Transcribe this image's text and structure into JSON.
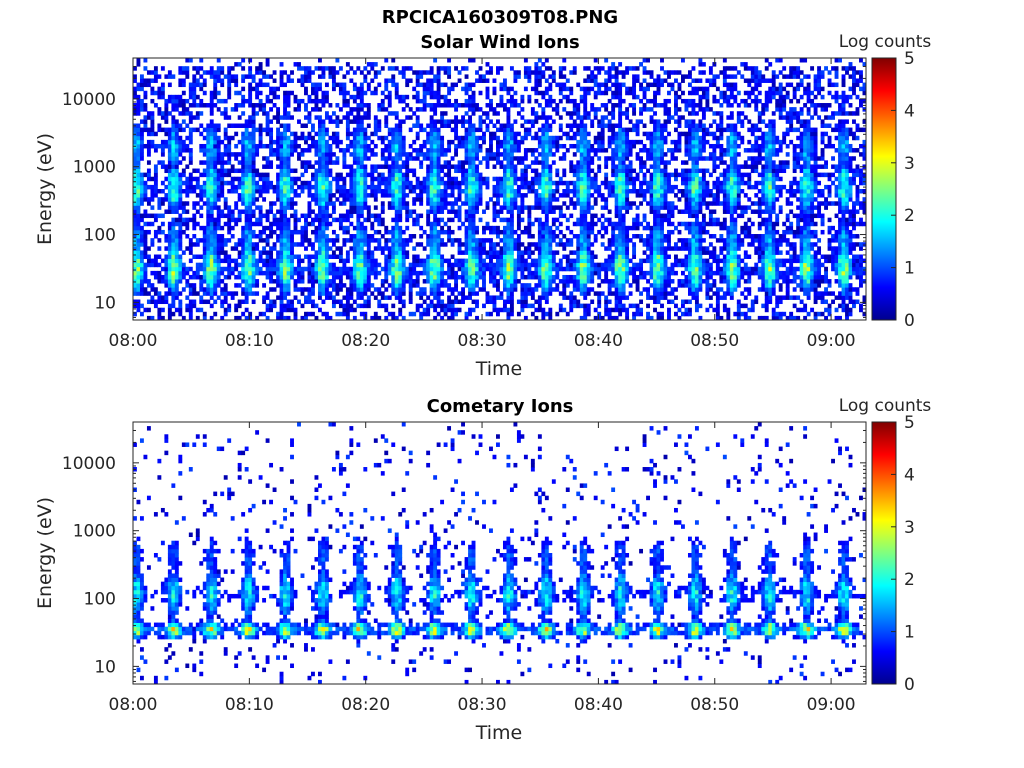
{
  "figure": {
    "title": "RPCICA160309T08.PNG"
  },
  "chart_data": [
    {
      "type": "heatmap",
      "title": "Solar Wind Ions",
      "xlabel": "Time",
      "ylabel": "Energy (eV)",
      "x_tick_labels": [
        "08:00",
        "08:10",
        "08:20",
        "08:30",
        "08:40",
        "08:50",
        "09:00"
      ],
      "x_range_minutes": [
        0,
        63
      ],
      "y_scale": "log",
      "y_range": [
        5.5,
        40000
      ],
      "y_ticks": [
        10,
        100,
        1000,
        10000
      ],
      "y_tick_labels": [
        "10",
        "100",
        "1000",
        "10000"
      ],
      "colorbar": {
        "label": "Log counts",
        "range": [
          0,
          5
        ],
        "ticks": [
          "0",
          "1",
          "2",
          "3",
          "4",
          "5"
        ],
        "colormap": "jet"
      },
      "pattern": "periodic ion bursts every ~3.2 min; core ~30 eV at log counts ~2-2.5; secondary band ~300-600 eV log counts ~2-2.5; sparse counts extending up to ~40 keV",
      "period_minutes": 3.2,
      "first_burst_minutes": 0.3,
      "bands": [
        {
          "center_eV": 32,
          "peak_log_counts": 2.4
        },
        {
          "center_eV": 80,
          "peak_log_counts": 1.4
        },
        {
          "center_eV": 500,
          "peak_log_counts": 2.1
        },
        {
          "center_eV": 2000,
          "peak_log_counts": 1.5
        },
        {
          "center_eV": 10000,
          "peak_log_counts": 0.6
        }
      ],
      "noise_fill_fraction": 0.45
    },
    {
      "type": "heatmap",
      "title": "Cometary Ions",
      "xlabel": "Time",
      "ylabel": "Energy (eV)",
      "x_tick_labels": [
        "08:00",
        "08:10",
        "08:20",
        "08:30",
        "08:40",
        "08:50",
        "09:00"
      ],
      "x_range_minutes": [
        0,
        63
      ],
      "y_scale": "log",
      "y_range": [
        5.5,
        40000
      ],
      "y_ticks": [
        10,
        100,
        1000,
        10000
      ],
      "y_tick_labels": [
        "10",
        "100",
        "1000",
        "10000"
      ],
      "colorbar": {
        "label": "Log counts",
        "range": [
          0,
          5
        ],
        "ticks": [
          "0",
          "1",
          "2",
          "3",
          "4",
          "5"
        ],
        "colormap": "jet"
      },
      "pattern": "periodic ion bursts every ~3.2 min; bright band ~30-40 eV at log counts ~3; bursts extend up to ~500 eV; sparse counts at higher energies",
      "period_minutes": 3.2,
      "first_burst_minutes": 0.3,
      "bands": [
        {
          "center_eV": 35,
          "peak_log_counts": 2.9
        },
        {
          "center_eV": 120,
          "peak_log_counts": 1.8
        },
        {
          "center_eV": 400,
          "peak_log_counts": 1.0
        },
        {
          "center_eV": 2000,
          "peak_log_counts": 0.3
        }
      ],
      "noise_fill_fraction": 0.06
    }
  ]
}
